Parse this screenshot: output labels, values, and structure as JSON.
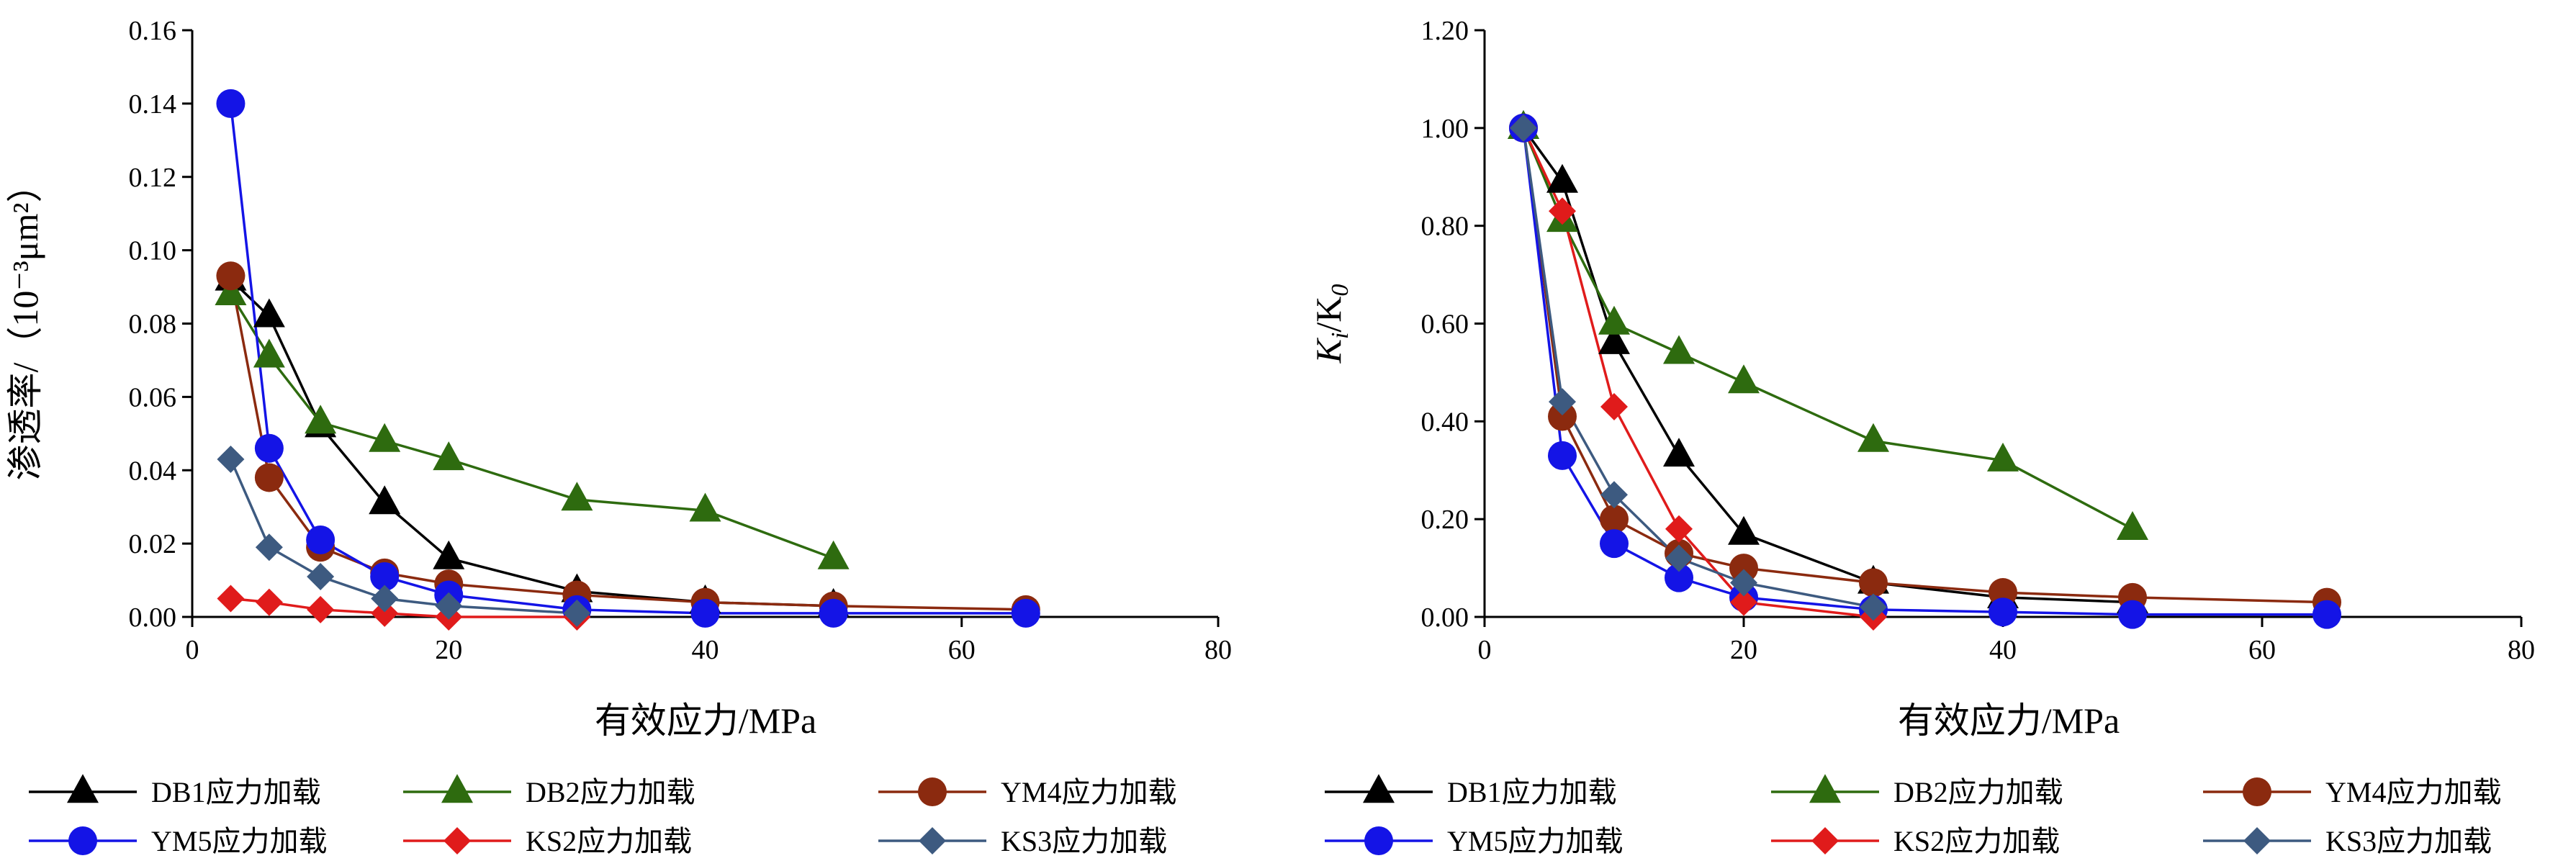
{
  "chart_data": [
    {
      "type": "line",
      "xlabel": "有效应力/MPa",
      "ylabel": "渗透率/（10⁻³μm²）",
      "xlim": [
        0,
        80
      ],
      "ylim": [
        0,
        0.16
      ],
      "x_ticks": [
        "0",
        "20",
        "40",
        "60",
        "80"
      ],
      "y_ticks": [
        "0.00",
        "0.02",
        "0.04",
        "0.06",
        "0.08",
        "0.10",
        "0.12",
        "0.14",
        "0.16"
      ],
      "grid": false,
      "legend_position": "bottom",
      "series": [
        {
          "name": "DB1应力加载",
          "marker": "triangle",
          "color": "#000000",
          "x": [
            3,
            6,
            10,
            15,
            20,
            30,
            40,
            50
          ],
          "y": [
            0.092,
            0.082,
            0.052,
            0.031,
            0.016,
            0.007,
            0.004,
            0.003
          ]
        },
        {
          "name": "DB2应力加载",
          "marker": "triangle",
          "color": "#2e6b0f",
          "x": [
            3,
            6,
            10,
            15,
            20,
            30,
            40,
            50
          ],
          "y": [
            0.088,
            0.071,
            0.053,
            0.048,
            0.043,
            0.032,
            0.029,
            0.016
          ]
        },
        {
          "name": "YM4应力加载",
          "marker": "circle",
          "color": "#8b2a0f",
          "x": [
            3,
            6,
            10,
            15,
            20,
            30,
            40,
            50,
            65
          ],
          "y": [
            0.093,
            0.038,
            0.019,
            0.012,
            0.009,
            0.006,
            0.004,
            0.003,
            0.002
          ]
        },
        {
          "name": "YM5应力加载",
          "marker": "circle",
          "color": "#1414e6",
          "x": [
            3,
            6,
            10,
            15,
            20,
            30,
            40,
            50,
            65
          ],
          "y": [
            0.14,
            0.046,
            0.021,
            0.011,
            0.006,
            0.002,
            0.001,
            0.001,
            0.001
          ]
        },
        {
          "name": "KS2应力加载",
          "marker": "diamond",
          "color": "#e01b1b",
          "x": [
            3,
            6,
            10,
            15,
            20,
            30
          ],
          "y": [
            0.005,
            0.004,
            0.002,
            0.001,
            0.0,
            0.0
          ]
        },
        {
          "name": "KS3应力加载",
          "marker": "diamond",
          "color": "#3d5a80",
          "x": [
            3,
            6,
            10,
            15,
            20,
            30
          ],
          "y": [
            0.043,
            0.019,
            0.011,
            0.005,
            0.003,
            0.001
          ]
        }
      ]
    },
    {
      "type": "line",
      "xlabel": "有效应力/MPa",
      "ylabel": "Ki/K0",
      "ylabel_parts": {
        "k1": "K",
        "i": "i",
        "sep": "/K",
        "zero": "0"
      },
      "xlim": [
        0,
        80
      ],
      "ylim": [
        0,
        1.2
      ],
      "x_ticks": [
        "0",
        "20",
        "40",
        "60",
        "80"
      ],
      "y_ticks": [
        "0.00",
        "0.20",
        "0.40",
        "0.60",
        "0.80",
        "1.00",
        "1.20"
      ],
      "grid": false,
      "legend_position": "bottom",
      "series": [
        {
          "name": "DB1应力加载",
          "marker": "triangle",
          "color": "#000000",
          "x": [
            3,
            6,
            10,
            15,
            20,
            30,
            40,
            50
          ],
          "y": [
            1.0,
            0.89,
            0.56,
            0.33,
            0.17,
            0.07,
            0.04,
            0.03
          ]
        },
        {
          "name": "DB2应力加载",
          "marker": "triangle",
          "color": "#2e6b0f",
          "x": [
            3,
            6,
            10,
            15,
            20,
            30,
            40,
            50
          ],
          "y": [
            1.0,
            0.81,
            0.6,
            0.54,
            0.48,
            0.36,
            0.32,
            0.18
          ]
        },
        {
          "name": "YM4应力加载",
          "marker": "circle",
          "color": "#8b2a0f",
          "x": [
            3,
            6,
            10,
            15,
            20,
            30,
            40,
            50,
            65
          ],
          "y": [
            1.0,
            0.41,
            0.2,
            0.13,
            0.1,
            0.07,
            0.05,
            0.04,
            0.03
          ]
        },
        {
          "name": "YM5应力加载",
          "marker": "circle",
          "color": "#1414e6",
          "x": [
            3,
            6,
            10,
            15,
            20,
            30,
            40,
            50,
            65
          ],
          "y": [
            1.0,
            0.33,
            0.15,
            0.08,
            0.04,
            0.015,
            0.01,
            0.005,
            0.005
          ]
        },
        {
          "name": "KS2应力加载",
          "marker": "diamond",
          "color": "#e01b1b",
          "x": [
            3,
            6,
            10,
            15,
            20,
            30
          ],
          "y": [
            1.0,
            0.83,
            0.43,
            0.18,
            0.03,
            0.0
          ]
        },
        {
          "name": "KS3应力加载",
          "marker": "diamond",
          "color": "#3d5a80",
          "x": [
            3,
            6,
            10,
            15,
            20,
            30
          ],
          "y": [
            1.0,
            0.44,
            0.25,
            0.12,
            0.07,
            0.02
          ]
        }
      ]
    }
  ]
}
